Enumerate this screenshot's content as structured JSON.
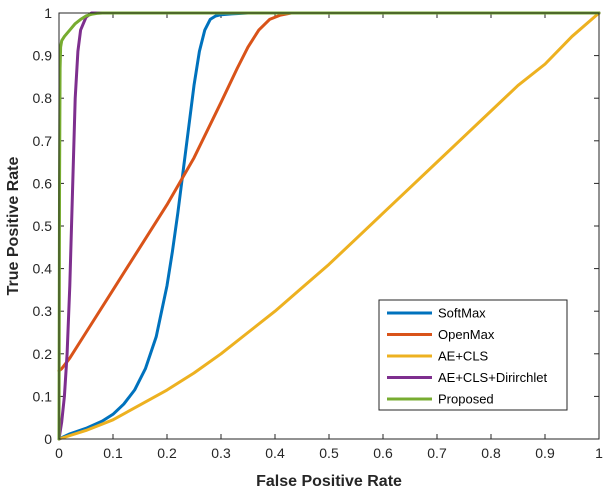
{
  "chart_data": {
    "type": "line",
    "title": "",
    "xlabel": "False Positive Rate",
    "ylabel": "True Positive Rate",
    "xlim": [
      0,
      1
    ],
    "ylim": [
      0,
      1
    ],
    "xticks": [
      0,
      0.1,
      0.2,
      0.3,
      0.4,
      0.5,
      0.6,
      0.7,
      0.8,
      0.9,
      1
    ],
    "xtick_labels": [
      "0",
      "0.1",
      "0.2",
      "0.3",
      "0.4",
      "0.5",
      "0.6",
      "0.7",
      "0.8",
      "0.9",
      "1"
    ],
    "yticks": [
      0,
      0.1,
      0.2,
      0.3,
      0.4,
      0.5,
      0.6,
      0.7,
      0.8,
      0.9,
      1
    ],
    "ytick_labels": [
      "0",
      "0.1",
      "0.2",
      "0.3",
      "0.4",
      "0.5",
      "0.6",
      "0.7",
      "0.8",
      "0.9",
      "1"
    ],
    "grid": false,
    "legend_position": "bottom-right",
    "series": [
      {
        "name": "SoftMax",
        "color": "#0072BD",
        "x": [
          0,
          0.02,
          0.05,
          0.08,
          0.1,
          0.12,
          0.14,
          0.16,
          0.18,
          0.2,
          0.21,
          0.22,
          0.23,
          0.24,
          0.25,
          0.26,
          0.27,
          0.28,
          0.29,
          0.3,
          0.32,
          0.35,
          0.4,
          1
        ],
        "y": [
          0,
          0.012,
          0.025,
          0.042,
          0.058,
          0.082,
          0.115,
          0.165,
          0.24,
          0.36,
          0.44,
          0.53,
          0.63,
          0.73,
          0.83,
          0.91,
          0.96,
          0.985,
          0.993,
          0.996,
          0.998,
          1.0,
          1.0,
          1.0
        ]
      },
      {
        "name": "OpenMax",
        "color": "#D95319",
        "x": [
          0,
          0.005,
          0.02,
          0.05,
          0.1,
          0.15,
          0.2,
          0.25,
          0.3,
          0.33,
          0.35,
          0.37,
          0.39,
          0.41,
          0.43,
          0.45,
          1
        ],
        "y": [
          0.16,
          0.165,
          0.19,
          0.25,
          0.35,
          0.45,
          0.55,
          0.66,
          0.79,
          0.87,
          0.92,
          0.96,
          0.985,
          0.995,
          1.0,
          1.0,
          1.0
        ]
      },
      {
        "name": "AE+CLS",
        "color": "#EDB120",
        "x": [
          0,
          0.05,
          0.1,
          0.15,
          0.2,
          0.25,
          0.3,
          0.35,
          0.4,
          0.45,
          0.5,
          0.55,
          0.6,
          0.65,
          0.7,
          0.75,
          0.8,
          0.85,
          0.9,
          0.95,
          1
        ],
        "y": [
          0,
          0.02,
          0.045,
          0.08,
          0.115,
          0.155,
          0.2,
          0.25,
          0.3,
          0.355,
          0.41,
          0.47,
          0.53,
          0.59,
          0.65,
          0.71,
          0.77,
          0.83,
          0.88,
          0.945,
          1.0
        ]
      },
      {
        "name": "AE+CLS+Dirirchlet",
        "color": "#7E2F8E",
        "x": [
          0,
          0.005,
          0.01,
          0.015,
          0.02,
          0.025,
          0.03,
          0.035,
          0.04,
          0.05,
          0.06,
          0.08,
          0.1,
          1
        ],
        "y": [
          0,
          0.04,
          0.1,
          0.2,
          0.36,
          0.58,
          0.8,
          0.91,
          0.96,
          0.99,
          1.0,
          1.0,
          1.0,
          1.0
        ]
      },
      {
        "name": "Proposed",
        "color": "#77AC30",
        "x": [
          0,
          0.001,
          0.002,
          0.003,
          0.005,
          0.01,
          0.02,
          0.03,
          0.04,
          0.05,
          0.06,
          0.07,
          0.08,
          0.1,
          1
        ],
        "y": [
          0,
          0.6,
          0.87,
          0.92,
          0.935,
          0.945,
          0.96,
          0.975,
          0.985,
          0.993,
          0.997,
          0.999,
          1.0,
          1.0,
          1.0
        ]
      }
    ]
  }
}
